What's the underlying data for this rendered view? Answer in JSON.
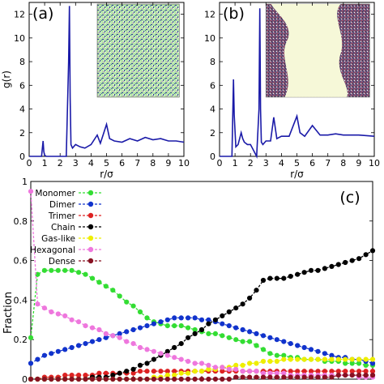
{
  "chart_data": [
    {
      "type": "line",
      "panel_label": "(a)",
      "xlabel": "r/σ",
      "ylabel": "g(r)",
      "xlim": [
        0,
        10
      ],
      "ylim": [
        0,
        13
      ],
      "xticks": [
        "0",
        "1",
        "2",
        "3",
        "4",
        "5",
        "6",
        "7",
        "8",
        "9",
        "10"
      ],
      "yticks": [
        "0",
        "2",
        "4",
        "6",
        "8",
        "10",
        "12"
      ],
      "line_color": "#1a1aa8",
      "inset": "snapshot-mixed-phase",
      "x": [
        0,
        0.8,
        0.9,
        0.95,
        1.0,
        1.1,
        1.3,
        1.6,
        2.0,
        2.4,
        2.55,
        2.6,
        2.65,
        2.7,
        2.8,
        3.0,
        3.3,
        3.6,
        4.0,
        4.4,
        4.6,
        4.8,
        5.0,
        5.2,
        5.5,
        6.0,
        6.5,
        7.0,
        7.5,
        8.0,
        8.5,
        9.0,
        9.5,
        10.0
      ],
      "y": [
        0,
        0,
        1.3,
        0.4,
        0.1,
        0,
        0,
        0,
        0,
        0,
        8.0,
        12.7,
        5.0,
        1.0,
        0.7,
        1.0,
        0.8,
        0.7,
        1.0,
        1.8,
        1.1,
        1.9,
        2.7,
        1.5,
        1.3,
        1.2,
        1.5,
        1.3,
        1.6,
        1.4,
        1.5,
        1.3,
        1.3,
        1.2
      ]
    },
    {
      "type": "line",
      "panel_label": "(b)",
      "xlabel": "r/σ",
      "ylabel": "",
      "xlim": [
        0,
        10
      ],
      "ylim": [
        0,
        13
      ],
      "xticks": [
        "0",
        "1",
        "2",
        "3",
        "4",
        "5",
        "6",
        "7",
        "8",
        "9",
        "10"
      ],
      "yticks": [
        "0",
        "2",
        "4",
        "6",
        "8",
        "10",
        "12"
      ],
      "line_color": "#1a1aa8",
      "inset": "snapshot-phase-separated",
      "x": [
        0,
        0.8,
        0.9,
        0.95,
        1.05,
        1.2,
        1.4,
        1.5,
        1.6,
        1.8,
        2.0,
        2.4,
        2.55,
        2.6,
        2.65,
        2.7,
        2.8,
        3.0,
        3.3,
        3.5,
        3.7,
        4.0,
        4.5,
        5.0,
        5.2,
        5.5,
        6.0,
        6.5,
        7.0,
        7.5,
        8.0,
        9.0,
        10.0
      ],
      "y": [
        0,
        0,
        6.5,
        3.5,
        0.8,
        1.0,
        2.0,
        1.5,
        1.2,
        1.0,
        1.0,
        0,
        4.0,
        12.5,
        4.0,
        1.2,
        1.0,
        1.3,
        1.3,
        3.3,
        1.5,
        1.7,
        1.7,
        3.4,
        2.0,
        1.7,
        2.6,
        1.8,
        1.8,
        1.9,
        1.8,
        1.8,
        1.7
      ]
    },
    {
      "type": "line",
      "panel_label": "(c)",
      "xlabel": "",
      "ylabel": "Fraction",
      "ylim": [
        0,
        1
      ],
      "xlim": [
        0,
        500
      ],
      "yticks": [
        "0",
        "0.2",
        "0.4",
        "0.6",
        "0.8",
        "1"
      ],
      "legend_placement": "top-left",
      "x": [
        0,
        10,
        20,
        30,
        40,
        50,
        60,
        70,
        80,
        90,
        100,
        110,
        120,
        130,
        140,
        150,
        160,
        170,
        180,
        190,
        200,
        210,
        220,
        230,
        240,
        250,
        260,
        270,
        280,
        290,
        300,
        310,
        320,
        330,
        340,
        350,
        360,
        370,
        380,
        390,
        400,
        410,
        420,
        430,
        440,
        450,
        460,
        470,
        480,
        490,
        500
      ],
      "series": [
        {
          "name": "Monomer",
          "color": "#33dd33",
          "values": [
            0.21,
            0.53,
            0.55,
            0.55,
            0.55,
            0.55,
            0.55,
            0.54,
            0.53,
            0.51,
            0.49,
            0.47,
            0.45,
            0.42,
            0.39,
            0.37,
            0.34,
            0.31,
            0.29,
            0.28,
            0.27,
            0.27,
            0.27,
            0.26,
            0.25,
            0.24,
            0.23,
            0.23,
            0.22,
            0.21,
            0.2,
            0.19,
            0.19,
            0.17,
            0.15,
            0.13,
            0.12,
            0.12,
            0.11,
            0.11,
            0.1,
            0.1,
            0.1,
            0.09,
            0.09,
            0.09,
            0.08,
            0.08,
            0.08,
            0.07,
            0.07
          ]
        },
        {
          "name": "Dimer",
          "color": "#1133cc",
          "values": [
            0.08,
            0.1,
            0.12,
            0.13,
            0.14,
            0.15,
            0.16,
            0.17,
            0.18,
            0.19,
            0.2,
            0.21,
            0.22,
            0.23,
            0.24,
            0.25,
            0.26,
            0.27,
            0.28,
            0.29,
            0.3,
            0.31,
            0.31,
            0.31,
            0.31,
            0.3,
            0.3,
            0.29,
            0.28,
            0.27,
            0.26,
            0.25,
            0.24,
            0.23,
            0.22,
            0.21,
            0.2,
            0.19,
            0.18,
            0.17,
            0.16,
            0.15,
            0.14,
            0.13,
            0.12,
            0.11,
            0.11,
            0.1,
            0.1,
            0.09,
            0.08
          ]
        },
        {
          "name": "Trimer",
          "color": "#dd2222",
          "values": [
            0.0,
            0.0,
            0.01,
            0.01,
            0.01,
            0.02,
            0.02,
            0.02,
            0.02,
            0.02,
            0.03,
            0.03,
            0.03,
            0.03,
            0.03,
            0.03,
            0.04,
            0.04,
            0.04,
            0.04,
            0.04,
            0.04,
            0.04,
            0.04,
            0.04,
            0.04,
            0.04,
            0.04,
            0.04,
            0.04,
            0.04,
            0.04,
            0.04,
            0.04,
            0.04,
            0.04,
            0.04,
            0.04,
            0.04,
            0.04,
            0.04,
            0.04,
            0.04,
            0.04,
            0.04,
            0.04,
            0.04,
            0.04,
            0.04,
            0.04,
            0.04
          ]
        },
        {
          "name": "Chain",
          "color": "#000000",
          "values": [
            0.0,
            0.0,
            0.0,
            0.0,
            0.0,
            0.0,
            0.0,
            0.0,
            0.0,
            0.01,
            0.01,
            0.01,
            0.02,
            0.03,
            0.04,
            0.05,
            0.07,
            0.08,
            0.1,
            0.12,
            0.14,
            0.16,
            0.18,
            0.21,
            0.23,
            0.25,
            0.28,
            0.3,
            0.32,
            0.34,
            0.36,
            0.38,
            0.41,
            0.45,
            0.5,
            0.51,
            0.51,
            0.51,
            0.52,
            0.53,
            0.54,
            0.55,
            0.55,
            0.56,
            0.57,
            0.58,
            0.59,
            0.6,
            0.61,
            0.63,
            0.65
          ]
        },
        {
          "name": "Gas-like",
          "color": "#eeee00",
          "values": [
            0.0,
            0.0,
            0.0,
            0.0,
            0.0,
            0.0,
            0.0,
            0.0,
            0.0,
            0.0,
            0.0,
            0.0,
            0.0,
            0.0,
            0.0,
            0.0,
            0.0,
            0.0,
            0.01,
            0.01,
            0.02,
            0.02,
            0.03,
            0.03,
            0.04,
            0.04,
            0.05,
            0.05,
            0.06,
            0.06,
            0.07,
            0.07,
            0.08,
            0.08,
            0.09,
            0.09,
            0.09,
            0.1,
            0.1,
            0.1,
            0.1,
            0.1,
            0.1,
            0.1,
            0.1,
            0.1,
            0.1,
            0.1,
            0.1,
            0.1,
            0.1
          ]
        },
        {
          "name": "Hexagonal",
          "color": "#ee77dd",
          "values": [
            0.95,
            0.38,
            0.36,
            0.34,
            0.33,
            0.32,
            0.3,
            0.29,
            0.27,
            0.26,
            0.25,
            0.23,
            0.22,
            0.21,
            0.19,
            0.18,
            0.16,
            0.15,
            0.14,
            0.13,
            0.12,
            0.11,
            0.1,
            0.09,
            0.08,
            0.08,
            0.07,
            0.06,
            0.06,
            0.05,
            0.05,
            0.04,
            0.04,
            0.04,
            0.03,
            0.03,
            0.03,
            0.03,
            0.02,
            0.02,
            0.02,
            0.02,
            0.02,
            0.02,
            0.02,
            0.02,
            0.02,
            0.02,
            0.01,
            0.01,
            0.01
          ]
        },
        {
          "name": "Dense",
          "color": "#881122",
          "values": [
            0.0,
            0.0,
            0.0,
            0.0,
            0.0,
            0.0,
            0.0,
            0.0,
            0.0,
            0.0,
            0.0,
            0.0,
            0.0,
            0.0,
            0.0,
            0.0,
            0.0,
            0.0,
            0.0,
            0.0,
            0.0,
            0.0,
            0.0,
            0.0,
            0.0,
            0.0,
            0.0,
            0.0,
            0.0,
            0.0,
            0.01,
            0.01,
            0.01,
            0.01,
            0.01,
            0.01,
            0.01,
            0.01,
            0.01,
            0.01,
            0.01,
            0.01,
            0.01,
            0.01,
            0.01,
            0.02,
            0.02,
            0.02,
            0.02,
            0.02,
            0.02
          ]
        }
      ]
    }
  ]
}
